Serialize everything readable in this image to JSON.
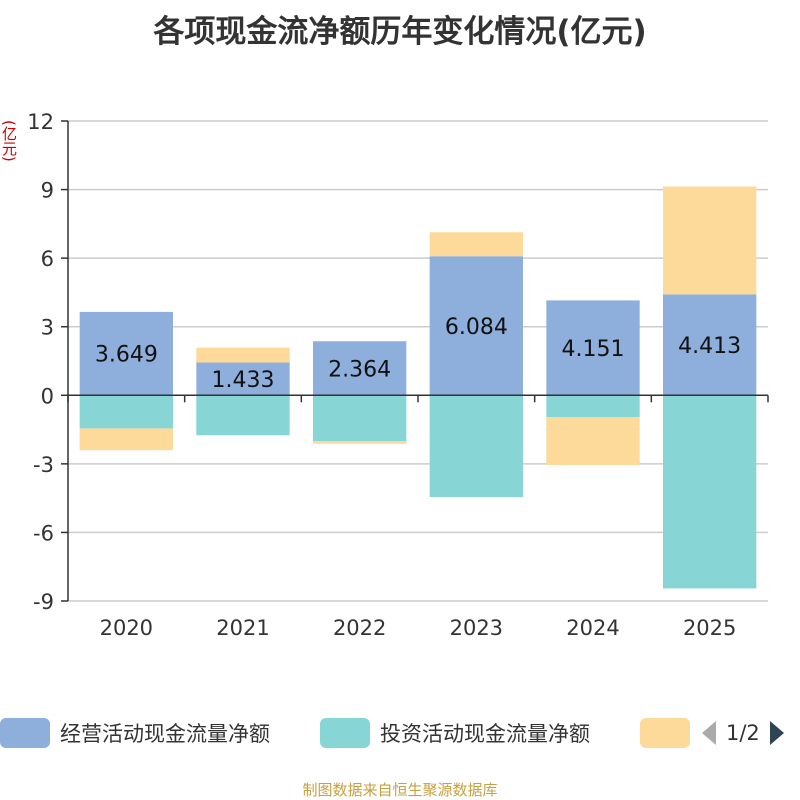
{
  "chart_data": {
    "type": "bar",
    "stacked": true,
    "title": "各项现金流净额历年变化情况(亿元)",
    "ylabel": "(亿元)",
    "categories": [
      "2020",
      "2021",
      "2022",
      "2023",
      "2024",
      "2025"
    ],
    "ylim": [
      -9,
      12
    ],
    "yticks": [
      12,
      9,
      6,
      3,
      0,
      -3,
      -6,
      -9
    ],
    "series": [
      {
        "name": "经营活动现金流量净额",
        "color": "#8eaedb",
        "values": [
          3.649,
          1.433,
          2.364,
          6.084,
          4.151,
          4.413
        ],
        "labels": [
          "3.649",
          "1.433",
          "2.364",
          "6.084",
          "4.151",
          "4.413"
        ]
      },
      {
        "name": "投资活动现金流量净额",
        "color": "#88d5d6",
        "values": [
          -1.45,
          -1.75,
          -2.0,
          -4.45,
          -0.95,
          -8.45
        ]
      },
      {
        "name": "",
        "color": "#fdd99a",
        "values": [
          -0.95,
          0.65,
          -0.12,
          1.05,
          -2.1,
          4.72
        ]
      }
    ]
  },
  "legend": {
    "items": [
      {
        "label": "经营活动现金流量净额",
        "color": "#8eaedb"
      },
      {
        "label": "投资活动现金流量净额",
        "color": "#88d5d6"
      },
      {
        "label": "",
        "color": "#fdd99a"
      }
    ],
    "page": "1/2"
  },
  "source": "制图数据来自恒生聚源数据库"
}
